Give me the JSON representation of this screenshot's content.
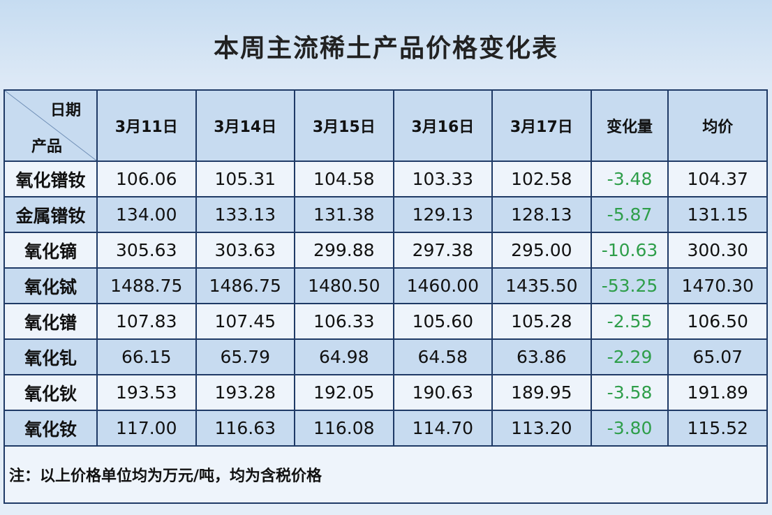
{
  "header": {
    "title": "本周主流稀土产品价格变化表"
  },
  "table": {
    "corner": {
      "top": "日期",
      "bottom": "产品"
    },
    "columns": [
      "3月11日",
      "3月14日",
      "3月15日",
      "3月16日",
      "3月17日",
      "变化量",
      "均价"
    ],
    "rows": [
      [
        "氧化镨钕",
        "106.06",
        "105.31",
        "104.58",
        "103.33",
        "102.58",
        "-3.48",
        "104.37"
      ],
      [
        "金属镨钕",
        "134.00",
        "133.13",
        "131.38",
        "129.13",
        "128.13",
        "-5.87",
        "131.15"
      ],
      [
        "氧化镝",
        "305.63",
        "303.63",
        "299.88",
        "297.38",
        "295.00",
        "-10.63",
        "300.30"
      ],
      [
        "氧化铽",
        "1488.75",
        "1486.75",
        "1480.50",
        "1460.00",
        "1435.50",
        "-53.25",
        "1470.30"
      ],
      [
        "氧化镨",
        "107.83",
        "107.45",
        "106.33",
        "105.60",
        "105.28",
        "-2.55",
        "106.50"
      ],
      [
        "氧化钆",
        "66.15",
        "65.79",
        "64.98",
        "64.58",
        "63.86",
        "-2.29",
        "65.07"
      ],
      [
        "氧化钬",
        "193.53",
        "193.28",
        "192.05",
        "190.63",
        "189.95",
        "-3.58",
        "191.89"
      ],
      [
        "氧化钕",
        "117.00",
        "116.63",
        "116.08",
        "114.70",
        "113.20",
        "-3.80",
        "115.52"
      ]
    ],
    "note": "注：以上价格单位均为万元/吨，均为含税价格"
  }
}
